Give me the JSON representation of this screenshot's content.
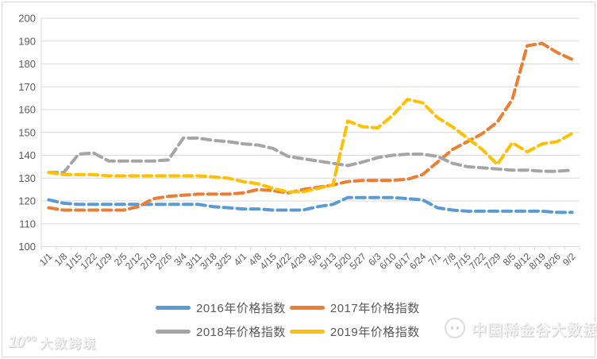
{
  "chart_data": {
    "type": "line",
    "title": "",
    "categories": [
      "1/1",
      "1/8",
      "1/15",
      "1/22",
      "1/29",
      "2/5",
      "2/12",
      "2/19",
      "2/26",
      "3/4",
      "3/11",
      "3/18",
      "3/25",
      "4/1",
      "4/8",
      "4/15",
      "4/22",
      "4/29",
      "5/6",
      "5/13",
      "5/20",
      "5/27",
      "6/3",
      "6/10",
      "6/17",
      "6/24",
      "7/1",
      "7/8",
      "7/15",
      "7/22",
      "7/29",
      "8/5",
      "8/12",
      "8/19",
      "8/26",
      "9/2"
    ],
    "series": [
      {
        "name": "2016年价格指数",
        "color": "#5B9BD5",
        "values": [
          120.5,
          119,
          118.5,
          118.5,
          118.5,
          118.5,
          118.5,
          118.5,
          118.5,
          118.5,
          118.5,
          117.5,
          117,
          116.5,
          116.5,
          116,
          116,
          116,
          117.5,
          118.5,
          121.5,
          121.5,
          121.5,
          121.5,
          121,
          120.5,
          117,
          116,
          115.5,
          115.5,
          115.5,
          115.5,
          115.5,
          115.5,
          115,
          115
        ]
      },
      {
        "name": "2017年价格指数",
        "color": "#ED7D31",
        "values": [
          117,
          116,
          116,
          116,
          116,
          116,
          117.5,
          121,
          122,
          122.5,
          123,
          123,
          123,
          123.5,
          125,
          124.5,
          123.5,
          125,
          126,
          127,
          128.5,
          129,
          129,
          129,
          129.5,
          131.5,
          137,
          142.5,
          146,
          149.5,
          154.5,
          164.5,
          188,
          189,
          185,
          182
        ]
      },
      {
        "name": "2018年价格指数",
        "color": "#A5A5A5",
        "values": [
          132.5,
          132.5,
          140.5,
          141,
          137.5,
          137.5,
          137.5,
          137.5,
          138,
          147.5,
          147.5,
          146.5,
          146,
          145,
          144.5,
          143,
          139.5,
          138.5,
          137.5,
          136.5,
          135.5,
          137,
          139,
          140,
          140.5,
          140.5,
          139.5,
          136.5,
          135,
          134.5,
          134,
          133.5,
          133.5,
          133,
          133,
          133.5
        ]
      },
      {
        "name": "2019年价格指数",
        "color": "#FFC000",
        "values": [
          132.5,
          131.5,
          131.5,
          131.5,
          131,
          131,
          131,
          131,
          131,
          131,
          131,
          130.5,
          130,
          128.5,
          127.5,
          125.5,
          124,
          124,
          125.5,
          127,
          155,
          152.5,
          152,
          157.5,
          164.5,
          163,
          156.5,
          152.5,
          147.5,
          142.5,
          136,
          145.5,
          141.5,
          145,
          146,
          149.5
        ]
      }
    ],
    "ylim": [
      100,
      200
    ],
    "y_ticks": [
      100,
      110,
      120,
      130,
      140,
      150,
      160,
      170,
      180,
      190,
      200
    ],
    "grid": true,
    "line_dash": "dashed",
    "legend_position": "bottom",
    "gridline_color": "#D9D9D9",
    "axis_text_color": "#595959"
  },
  "watermarks": {
    "bottom_left_logo": "10°°",
    "bottom_left_text": "大数跨境",
    "bottom_right_text": "中国稀金谷大数据"
  }
}
